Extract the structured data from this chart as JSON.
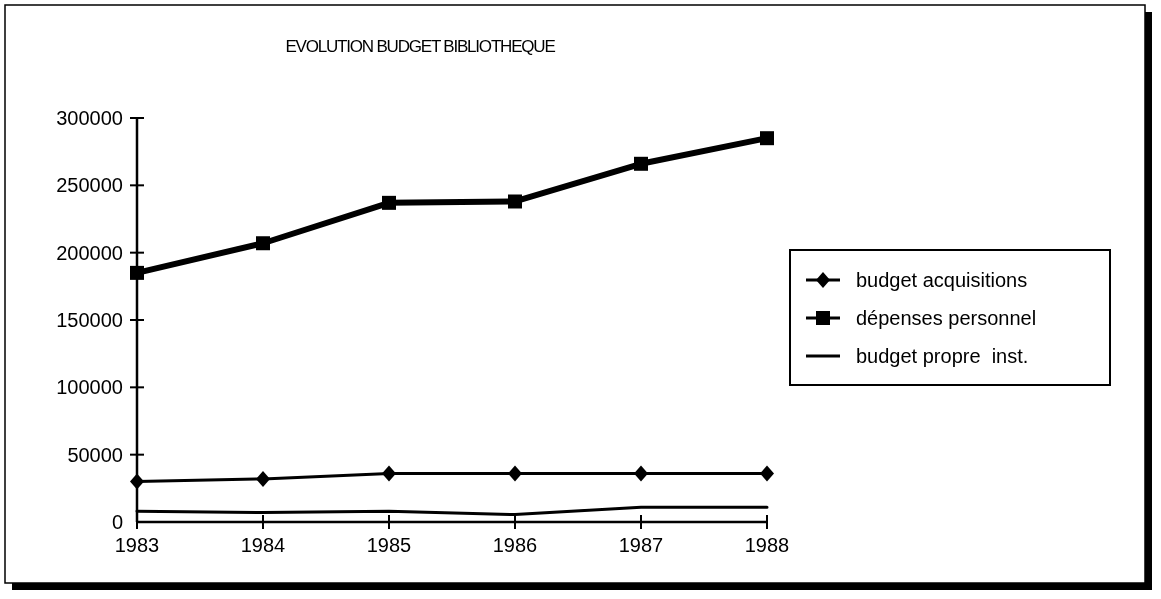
{
  "chart_data": {
    "type": "line",
    "title": "EVOLUTION BUDGET BIBLIOTHEQUE",
    "categories": [
      "1983",
      "1984",
      "1985",
      "1986",
      "1987",
      "1988"
    ],
    "series": [
      {
        "name": "budget acquisitions",
        "color": "#000000",
        "marker": "diamond",
        "values": [
          30000,
          32000,
          36000,
          36000,
          36000,
          36000
        ]
      },
      {
        "name": "dépenses personnel",
        "color": "#000000",
        "marker": "square",
        "values": [
          185000,
          207000,
          237000,
          238000,
          266000,
          285000
        ]
      },
      {
        "name": "budget propre  inst.",
        "color": "#000000",
        "marker": "none",
        "values": [
          8000,
          7000,
          8000,
          5500,
          11000,
          11000
        ]
      }
    ],
    "ylim": [
      0,
      300000
    ],
    "yticks": [
      0,
      50000,
      100000,
      150000,
      200000,
      250000,
      300000
    ],
    "grid": false,
    "legend": "right"
  }
}
